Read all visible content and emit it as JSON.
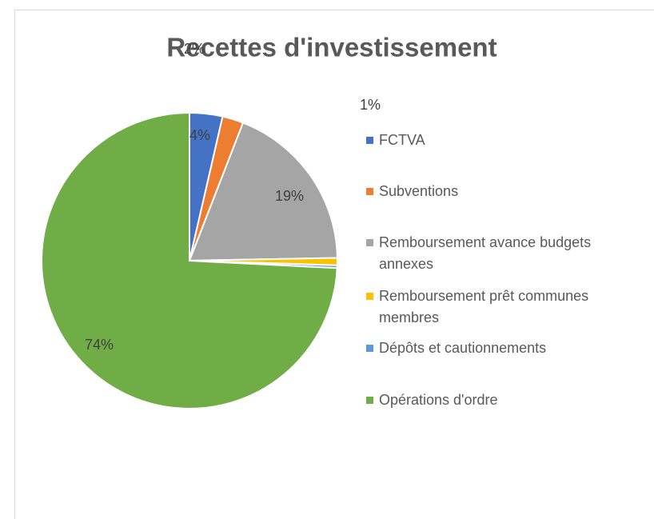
{
  "chart_data": {
    "type": "pie",
    "title": "Recettes d'investissement",
    "categories": [
      "FCTVA",
      "Subventions",
      "Remboursement avance budgets annexes",
      "Remboursement prêt communes membres",
      "Dépôts et cautionnements",
      "Opérations d'ordre"
    ],
    "values": [
      3.6,
      2.3,
      18.8,
      0.8,
      0.3,
      74.2
    ],
    "value_labels": [
      "4%",
      "2%",
      "19%",
      "1%",
      null,
      "74%"
    ],
    "colors": [
      "#4472c4",
      "#ed7d31",
      "#a5a5a5",
      "#ffc000",
      "#5b9bd5",
      "#70ad47"
    ],
    "legend": "right"
  }
}
